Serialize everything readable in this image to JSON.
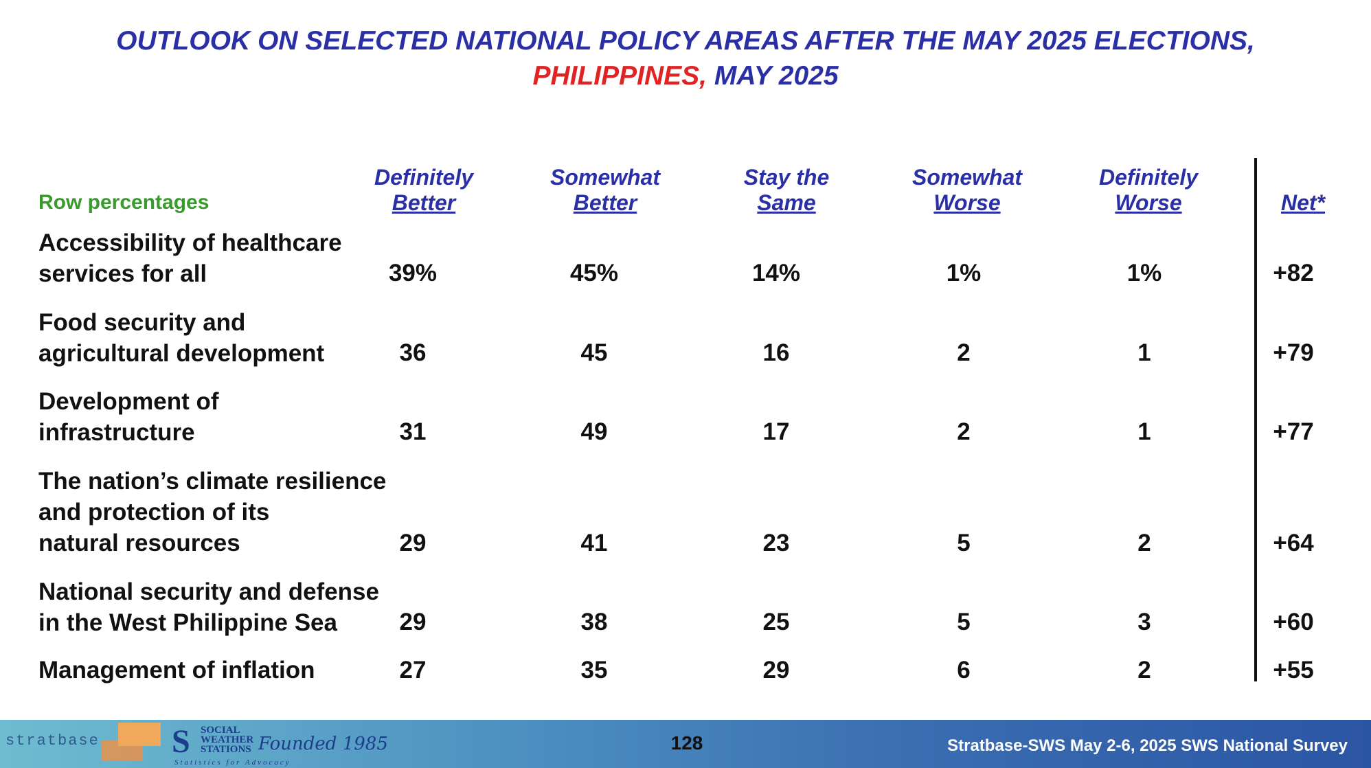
{
  "title": {
    "line1": "OUTLOOK ON SELECTED NATIONAL POLICY AREAS AFTER THE MAY 2025 ELECTIONS,",
    "line2_red": "PHILIPPINES,",
    "line2_rest": "MAY 2025",
    "colors": {
      "blue": "#2b2fa6",
      "red": "#e02424"
    }
  },
  "table": {
    "row_percentages_label": "Row percentages",
    "columns": [
      {
        "line1": "Definitely",
        "line2": "Better"
      },
      {
        "line1": "Somewhat",
        "line2": "Better"
      },
      {
        "line1": "Stay the",
        "line2": "Same"
      },
      {
        "line1": "Somewhat",
        "line2": "Worse"
      },
      {
        "line1": "Definitely",
        "line2": "Worse"
      },
      {
        "line1": "",
        "line2": "Net*"
      }
    ],
    "rows": [
      {
        "label": [
          "Accessibility of healthcare",
          "services for all"
        ],
        "values": [
          "39%",
          "45%",
          "14%",
          "1%",
          "1%",
          "+82"
        ]
      },
      {
        "label": [
          "Food security and",
          "agricultural development"
        ],
        "values": [
          "36",
          "45",
          "16",
          "2",
          "1",
          "+79"
        ]
      },
      {
        "label": [
          "Development of",
          "infrastructure"
        ],
        "values": [
          "31",
          "49",
          "17",
          "2",
          "1",
          "+77"
        ]
      },
      {
        "label": [
          "The nation’s climate resilience",
          "and protection of its",
          "natural resources"
        ],
        "values": [
          "29",
          "41",
          "23",
          "5",
          "2",
          "+64"
        ]
      },
      {
        "label": [
          "National security and defense",
          "in the West Philippine Sea"
        ],
        "values": [
          "29",
          "38",
          "25",
          "5",
          "3",
          "+60"
        ]
      },
      {
        "label": [
          "Management of inflation"
        ],
        "values": [
          "27",
          "35",
          "29",
          "6",
          "2",
          "+55"
        ]
      }
    ]
  },
  "footer": {
    "stratbase_logo": "stratbase",
    "sws_logo_letter": "S",
    "sws_logo_lines": [
      "SOCIAL",
      "WEATHER",
      "STATIONS"
    ],
    "founded": "Founded 1985",
    "tagline": "Statistics for Advocacy",
    "page_number": "128",
    "survey": "Stratbase-SWS May 2-6, 2025 SWS National Survey"
  }
}
